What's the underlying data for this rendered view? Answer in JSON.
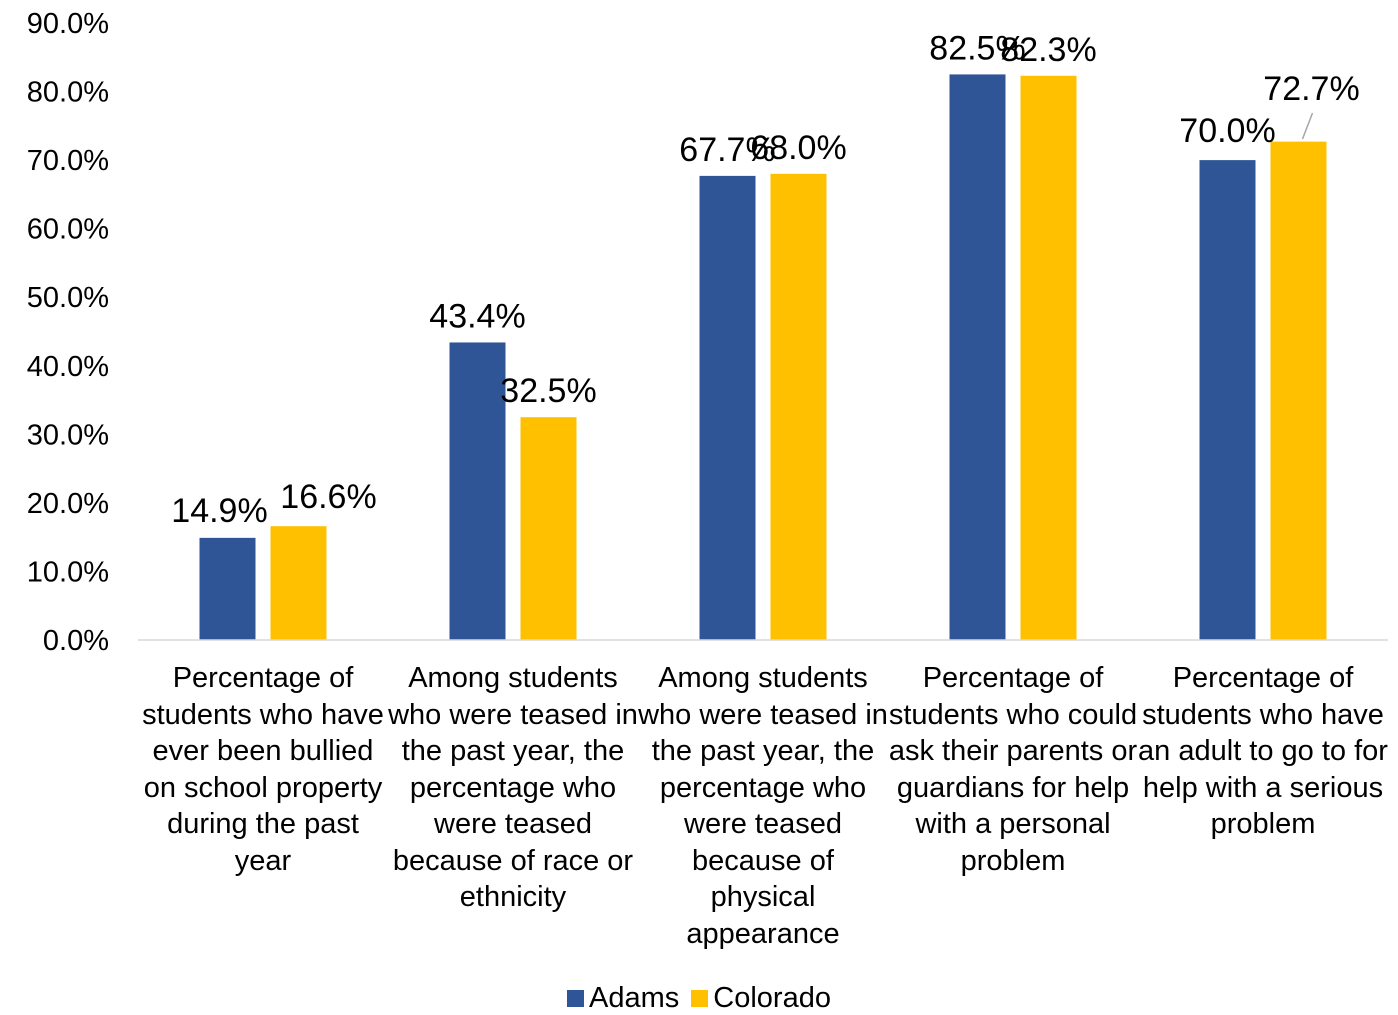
{
  "chart_data": {
    "type": "bar",
    "title": "",
    "xlabel": "",
    "ylabel": "",
    "ylim": [
      0,
      90
    ],
    "yticks": [
      "0.0%",
      "10.0%",
      "20.0%",
      "30.0%",
      "40.0%",
      "50.0%",
      "60.0%",
      "70.0%",
      "80.0%",
      "90.0%"
    ],
    "categories": [
      "Percentage of students who have ever been bullied on school property during the past year",
      "Among students who were teased in the past year, the percentage who were teased because of race or ethnicity",
      "Among students who were teased in the past year, the percentage who were teased because of physical appearance",
      "Percentage of students who could ask their parents or guardians for help with a personal problem",
      "Percentage of students who have an adult to go to for help with a serious problem"
    ],
    "series": [
      {
        "name": "Adams",
        "color": "#2F5597",
        "values": [
          14.9,
          43.4,
          67.7,
          82.5,
          70.0
        ],
        "labels": [
          "14.9%",
          "43.4%",
          "67.7%",
          "82.5%",
          "70.0%"
        ]
      },
      {
        "name": "Colorado",
        "color": "#FFC000",
        "values": [
          16.6,
          32.5,
          68.0,
          82.3,
          72.7
        ],
        "labels": [
          "16.6%",
          "32.5%",
          "68.0%",
          "82.3%",
          "72.7%"
        ]
      }
    ],
    "grid": false,
    "legend": "bottom"
  }
}
